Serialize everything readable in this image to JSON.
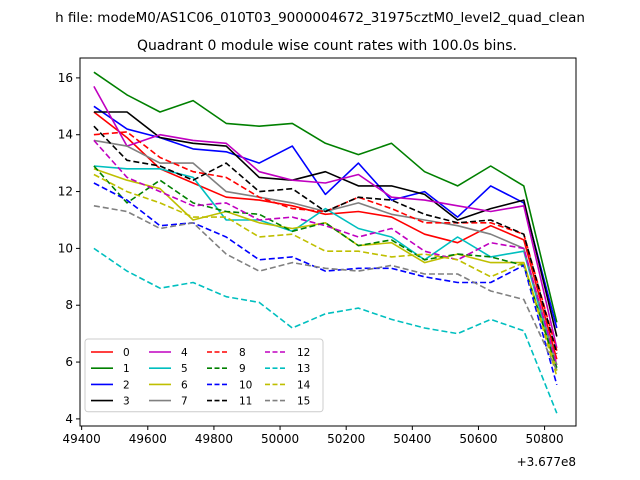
{
  "chart_data": {
    "type": "line",
    "suptitle": "h file: modeM0/AS1C06_010T03_9000004672_31975cztM0_level2_quad_clean",
    "title": "Quadrant 0 module wise count rates with 100.0s bins.",
    "xlabel": "",
    "ylabel": "",
    "x_offset_label": "+3.677e8",
    "xlim": [
      49395,
      50895
    ],
    "ylim": [
      3.75,
      16.7
    ],
    "x_ticks": [
      49400,
      49600,
      49800,
      50000,
      50200,
      50400,
      50600,
      50800
    ],
    "y_ticks": [
      4,
      6,
      8,
      10,
      12,
      14,
      16
    ],
    "x": [
      49437,
      49537,
      49637,
      49737,
      49837,
      49937,
      50037,
      50137,
      50237,
      50337,
      50437,
      50537,
      50637,
      50737,
      50837
    ],
    "legend": {
      "position": "lower-left",
      "columns": 4
    },
    "series": [
      {
        "name": "0",
        "color": "#ff0000",
        "dash": "solid",
        "values": [
          14.8,
          13.9,
          12.8,
          12.3,
          11.8,
          11.7,
          11.5,
          11.2,
          11.3,
          11.1,
          10.5,
          10.2,
          10.8,
          10.3,
          6.1
        ]
      },
      {
        "name": "1",
        "color": "#008000",
        "dash": "solid",
        "values": [
          16.2,
          15.4,
          14.8,
          15.2,
          14.4,
          14.3,
          14.4,
          13.7,
          13.3,
          13.7,
          12.7,
          12.2,
          12.9,
          12.2,
          7.4
        ]
      },
      {
        "name": "2",
        "color": "#0000ff",
        "dash": "solid",
        "values": [
          15.0,
          14.2,
          13.9,
          13.5,
          13.4,
          13.0,
          13.6,
          11.9,
          13.0,
          11.7,
          12.0,
          11.1,
          12.2,
          11.6,
          7.2
        ]
      },
      {
        "name": "3",
        "color": "#000000",
        "dash": "solid",
        "values": [
          14.8,
          14.8,
          13.9,
          13.7,
          13.6,
          12.5,
          12.4,
          12.7,
          12.2,
          12.2,
          11.9,
          11.0,
          11.4,
          11.7,
          6.9
        ]
      },
      {
        "name": "4",
        "color": "#c000c0",
        "dash": "solid",
        "values": [
          15.7,
          13.6,
          14.0,
          13.8,
          13.7,
          12.7,
          12.4,
          12.3,
          12.6,
          11.8,
          11.7,
          11.5,
          11.3,
          11.5,
          6.5
        ]
      },
      {
        "name": "5",
        "color": "#00bfbf",
        "dash": "solid",
        "values": [
          12.9,
          12.8,
          12.8,
          12.5,
          11.0,
          11.0,
          10.6,
          11.4,
          10.7,
          10.4,
          9.6,
          10.4,
          9.7,
          9.9,
          5.7
        ]
      },
      {
        "name": "6",
        "color": "#bfbf00",
        "dash": "solid",
        "values": [
          12.8,
          12.4,
          12.1,
          11.0,
          11.3,
          10.9,
          10.7,
          10.9,
          10.1,
          10.2,
          9.5,
          9.8,
          9.5,
          9.5,
          5.7
        ]
      },
      {
        "name": "7",
        "color": "#808080",
        "dash": "solid",
        "values": [
          13.8,
          13.6,
          13.0,
          13.0,
          12.0,
          11.8,
          11.6,
          11.3,
          11.6,
          11.2,
          11.0,
          10.8,
          10.5,
          10.0,
          5.9
        ]
      },
      {
        "name": "8",
        "color": "#ff0000",
        "dash": "dashed",
        "values": [
          14.0,
          14.1,
          13.2,
          12.7,
          12.5,
          11.8,
          11.4,
          11.3,
          11.8,
          11.4,
          10.9,
          10.9,
          10.9,
          10.5,
          6.4
        ]
      },
      {
        "name": "9",
        "color": "#008000",
        "dash": "dashed",
        "values": [
          12.9,
          11.6,
          12.4,
          11.6,
          11.3,
          11.2,
          10.6,
          10.9,
          10.1,
          10.3,
          9.6,
          9.8,
          9.7,
          9.4,
          5.8
        ]
      },
      {
        "name": "10",
        "color": "#0000ff",
        "dash": "dashed",
        "values": [
          12.3,
          11.7,
          10.8,
          10.9,
          10.4,
          9.6,
          9.7,
          9.2,
          9.3,
          9.3,
          9.0,
          8.8,
          8.8,
          9.4,
          5.2
        ]
      },
      {
        "name": "11",
        "color": "#000000",
        "dash": "dashed",
        "values": [
          14.3,
          13.1,
          12.9,
          12.4,
          13.0,
          12.0,
          12.1,
          11.3,
          11.8,
          11.7,
          11.2,
          10.9,
          11.0,
          10.5,
          6.3
        ]
      },
      {
        "name": "12",
        "color": "#c000c0",
        "dash": "dashed",
        "values": [
          13.8,
          12.5,
          12.0,
          11.5,
          11.6,
          11.0,
          11.1,
          10.8,
          10.4,
          10.7,
          9.9,
          9.6,
          10.2,
          10.0,
          5.9
        ]
      },
      {
        "name": "13",
        "color": "#00bfbf",
        "dash": "dashed",
        "values": [
          10.0,
          9.2,
          8.6,
          8.8,
          8.3,
          8.1,
          7.2,
          7.7,
          7.9,
          7.5,
          7.2,
          7.0,
          7.5,
          7.1,
          4.2
        ]
      },
      {
        "name": "14",
        "color": "#bfbf00",
        "dash": "dashed",
        "values": [
          12.6,
          12.0,
          11.6,
          11.1,
          11.1,
          10.4,
          10.5,
          9.9,
          9.9,
          9.7,
          9.8,
          9.6,
          9.0,
          9.5,
          5.5
        ]
      },
      {
        "name": "15",
        "color": "#808080",
        "dash": "dashed",
        "values": [
          11.5,
          11.3,
          10.7,
          10.9,
          9.8,
          9.2,
          9.5,
          9.3,
          9.2,
          9.4,
          9.1,
          9.1,
          8.5,
          8.2,
          5.7
        ]
      }
    ]
  }
}
